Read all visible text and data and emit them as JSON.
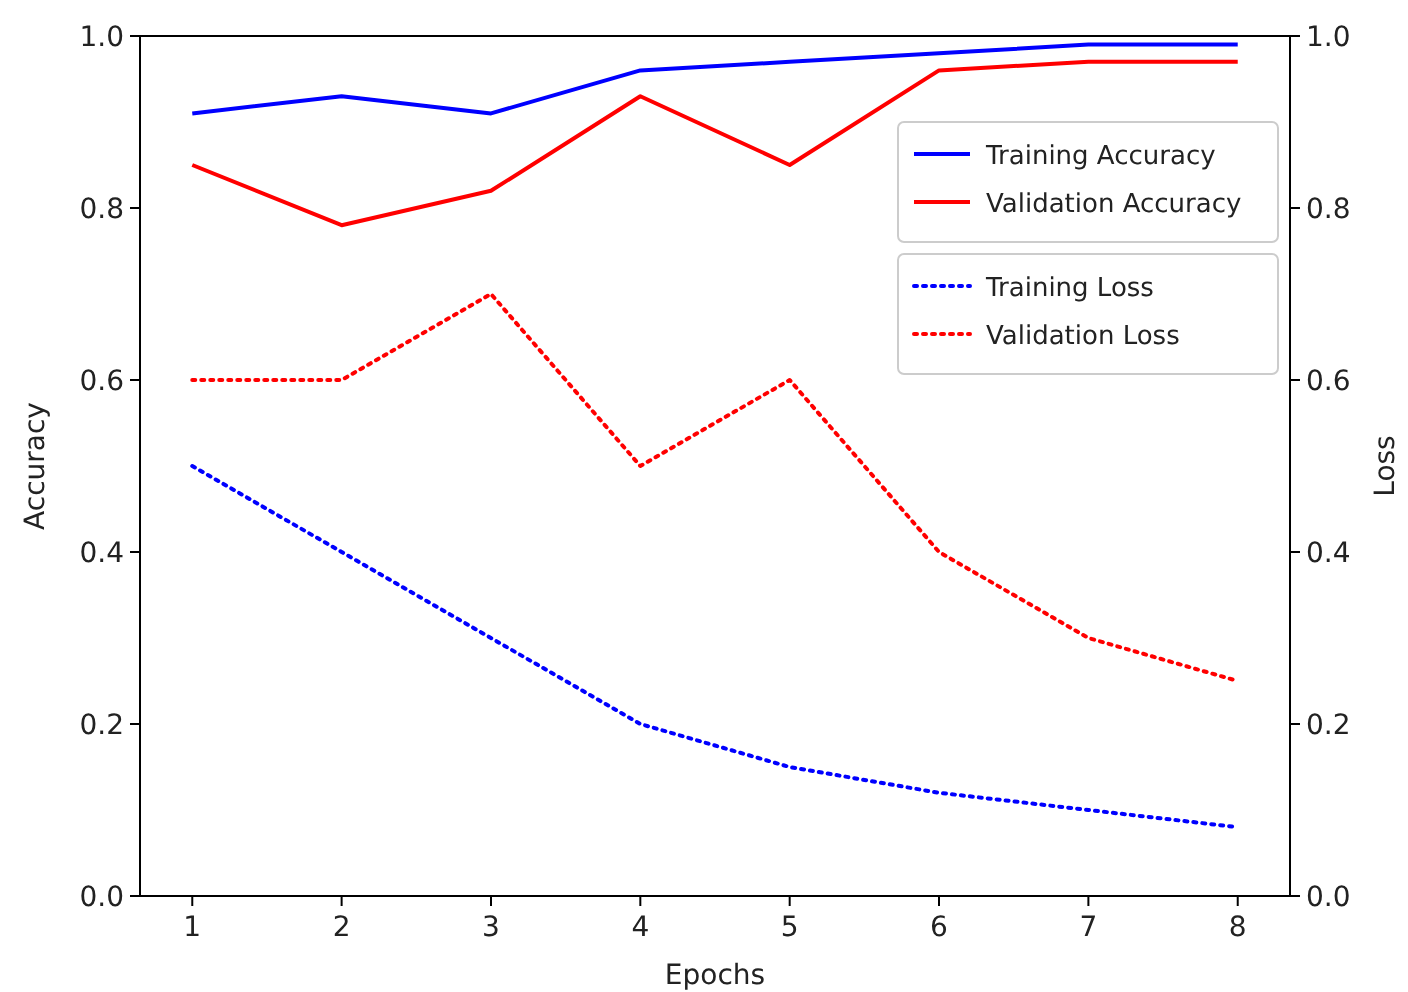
{
  "chart_data": {
    "type": "line",
    "xlabel": "Epochs",
    "ylabel": "Accuracy",
    "y2label": "Loss",
    "x": [
      1,
      2,
      3,
      4,
      5,
      6,
      7,
      8
    ],
    "xlim": [
      0.65,
      8.35
    ],
    "xticks": [
      1,
      2,
      3,
      4,
      5,
      6,
      7,
      8
    ],
    "ylim": [
      0,
      1
    ],
    "yticks": [
      {
        "value": 0,
        "label": "0.0"
      },
      0.2,
      0.4,
      0.6,
      0.8,
      {
        "value": 1,
        "label": "1.0"
      }
    ],
    "y2lim": [
      0,
      1
    ],
    "y2ticks": [
      {
        "value": 0,
        "label": "0.0"
      },
      0.2,
      0.4,
      0.6,
      0.8,
      {
        "value": 1,
        "label": "1.0"
      }
    ],
    "series": [
      {
        "name": "Training Accuracy",
        "color": "#0000ff",
        "line_style": "solid",
        "values": [
          0.91,
          0.93,
          0.91,
          0.96,
          0.97,
          0.98,
          0.99,
          0.99
        ]
      },
      {
        "name": "Validation Accuracy",
        "color": "#ff0000",
        "line_style": "solid",
        "values": [
          0.85,
          0.78,
          0.82,
          0.93,
          0.85,
          0.96,
          0.97,
          0.97
        ]
      },
      {
        "name": "Training Loss",
        "color": "#0000ff",
        "line_style": "dotted",
        "axis": "y2",
        "values": [
          0.5,
          0.4,
          0.3,
          0.2,
          0.15,
          0.12,
          0.1,
          0.08
        ]
      },
      {
        "name": "Validation Loss",
        "color": "#ff0000",
        "line_style": "dotted",
        "axis": "y2",
        "values": [
          0.6,
          0.6,
          0.7,
          0.5,
          0.6,
          0.4,
          0.3,
          0.25
        ]
      }
    ],
    "legend": "right",
    "grid": false
  }
}
